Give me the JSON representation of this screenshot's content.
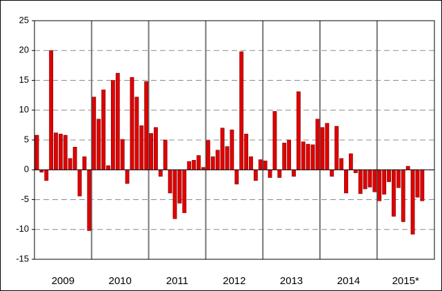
{
  "chart_data": {
    "type": "bar",
    "color": "#e00000",
    "grid": true,
    "ylim": [
      -15,
      25
    ],
    "yticks": [
      -15,
      -10,
      -5,
      0,
      5,
      10,
      15,
      20,
      25
    ],
    "categories": [
      null,
      null,
      null,
      null,
      null,
      null,
      "2009",
      null,
      null,
      null,
      null,
      null,
      null,
      null,
      null,
      null,
      null,
      null,
      "2010",
      null,
      null,
      null,
      null,
      null,
      null,
      null,
      null,
      null,
      null,
      null,
      "2011",
      null,
      null,
      null,
      null,
      null,
      null,
      null,
      null,
      null,
      null,
      null,
      "2012",
      null,
      null,
      null,
      null,
      null,
      null,
      null,
      null,
      null,
      null,
      null,
      "2013",
      null,
      null,
      null,
      null,
      null,
      null,
      null,
      null,
      null,
      null,
      null,
      "2014",
      null,
      null,
      null,
      null,
      null,
      null,
      null,
      null,
      null,
      null,
      null,
      "2015*",
      null,
      null,
      null
    ],
    "values": [
      5.8,
      -0.4,
      -1.8,
      20,
      6.2,
      6.0,
      5.8,
      1.9,
      3.8,
      -4.4,
      2.2,
      -10.2,
      12.2,
      8.5,
      13.4,
      0.7,
      15.0,
      16.2,
      5.1,
      -2.3,
      15.5,
      12.2,
      7.4,
      14.8,
      6.1,
      7.1,
      -1.1,
      5.0,
      -3.9,
      -8.2,
      -5.6,
      -7.2,
      1.4,
      1.6,
      2.4,
      0.4,
      4.9,
      2.2,
      3.3,
      7.0,
      3.9,
      6.7,
      -2.4,
      19.8,
      6.0,
      2.2,
      -1.8,
      1.7,
      1.5,
      -1.3,
      9.8,
      -1.3,
      4.5,
      5.0,
      -1.1,
      13.1,
      4.7,
      4.3,
      4.2,
      8.5,
      7.1,
      7.8,
      -1.1,
      7.3,
      1.9,
      -3.9,
      2.7,
      -0.5,
      -4.0,
      -3.2,
      -2.9,
      -3.7,
      -5.2,
      -4.1,
      -2.0,
      -7.8,
      -3.0,
      -8.7,
      0.6,
      -10.8,
      -4.6,
      -5.2
    ]
  }
}
